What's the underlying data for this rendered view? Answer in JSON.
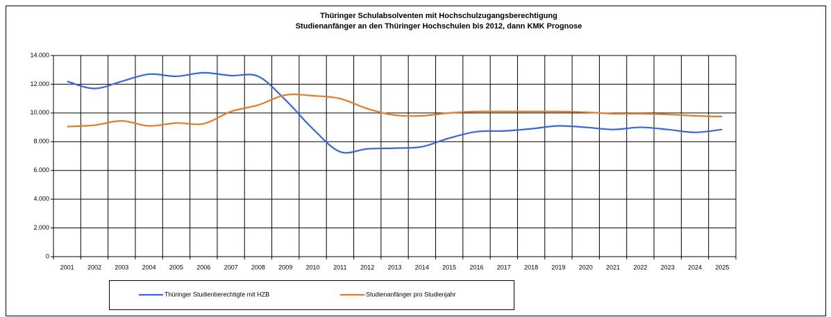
{
  "chart_data": {
    "type": "line",
    "title": "Thüringer Schulabsolventen mit Hochschulzugangsberechtigung",
    "subtitle": "Studienanfänger an den Thüringer Hochschulen bis 2012, dann KMK Prognose",
    "categories": [
      "2001",
      "2002",
      "2003",
      "2004",
      "2005",
      "2006",
      "2007",
      "2008",
      "2009",
      "2010",
      "2011",
      "2012",
      "2013",
      "2014",
      "2015",
      "2016",
      "2017",
      "2018",
      "2019",
      "2020",
      "2021",
      "2022",
      "2023",
      "2024",
      "2025"
    ],
    "series": [
      {
        "name": "Thüringer Studienberechtigte mit HZB",
        "color": "#3366ee",
        "values": [
          12200,
          11700,
          12200,
          12700,
          12550,
          12800,
          12600,
          12550,
          10900,
          8900,
          7300,
          7500,
          7550,
          7650,
          8250,
          8700,
          8750,
          8900,
          9100,
          9000,
          8850,
          9000,
          8850,
          8650,
          8850
        ]
      },
      {
        "name": "Studienanfänger pro Studienjahr",
        "color": "#ee7722",
        "values": [
          9050,
          9150,
          9450,
          9100,
          9300,
          9250,
          10100,
          10550,
          11250,
          11200,
          11000,
          10300,
          9850,
          9800,
          10000,
          10100,
          10100,
          10100,
          10100,
          10050,
          9950,
          9950,
          9900,
          9800,
          9750
        ]
      }
    ],
    "ylim": [
      0,
      14000
    ],
    "yticks": [
      0,
      {
        "value": 2000,
        "label": "2.000"
      },
      {
        "value": 4000,
        "label": "4.000"
      },
      {
        "value": 6000,
        "label": "6.000"
      },
      {
        "value": 8000,
        "label": "8.000"
      },
      {
        "value": 10000,
        "label": "10.000"
      },
      {
        "value": 12000,
        "label": "12.000"
      },
      {
        "value": 14000,
        "label": "14.000"
      }
    ],
    "grid": true,
    "legend": "bottom"
  }
}
